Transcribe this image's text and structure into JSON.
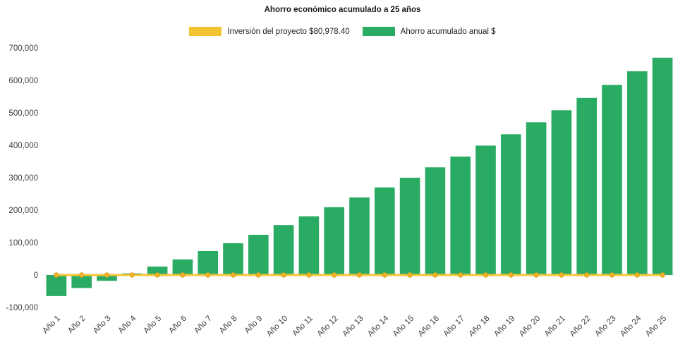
{
  "title": "Ahorro económico acumulado a 25 años",
  "legend": [
    {
      "label": "Inversión del proyecto $80,978.40",
      "color": "#f0c330"
    },
    {
      "label": "Ahorro acumulado anual $",
      "color": "#2aab63"
    }
  ],
  "chart_data": {
    "type": "bar",
    "title": "Ahorro económico acumulado a 25 años",
    "xlabel": "",
    "ylabel": "",
    "grid": false,
    "legend_position": "top",
    "ylim": [
      -100000,
      700000
    ],
    "yticks": [
      {
        "value": 700000,
        "label": "700,000"
      },
      {
        "value": 600000,
        "label": "600,000"
      },
      {
        "value": 500000,
        "label": "500,000"
      },
      {
        "value": 400000,
        "label": "400,000"
      },
      {
        "value": 300000,
        "label": "300,000"
      },
      {
        "value": 200000,
        "label": "200,000"
      },
      {
        "value": 100000,
        "label": "100,000"
      },
      {
        "value": 0,
        "label": "0"
      },
      {
        "value": -100000,
        "label": "-100,000"
      }
    ],
    "categories": [
      "Año 1",
      "Año 2",
      "Año 3",
      "Año 4",
      "Año 5",
      "Año 6",
      "Año 7",
      "Año 8",
      "Año 9",
      "Año 10",
      "Año 11",
      "Año 12",
      "Año 13",
      "Año 14",
      "Año 15",
      "Año 16",
      "Año 17",
      "Año 18",
      "Año 19",
      "Año 20",
      "Año 21",
      "Año 22",
      "Año 23",
      "Año 24",
      "Año 25"
    ],
    "series": [
      {
        "name": "Ahorro acumulado anual $",
        "type": "bar",
        "color": "#2aab63",
        "values": [
          -65000,
          -40000,
          -18000,
          5000,
          26000,
          48000,
          74000,
          98000,
          124000,
          154000,
          181000,
          209000,
          239000,
          270000,
          300000,
          332000,
          365000,
          399000,
          434000,
          471000,
          508000,
          546000,
          586000,
          628000,
          670000
        ]
      },
      {
        "name": "Inversión del proyecto $80,978.40",
        "type": "line",
        "color": "#f6c436",
        "marker_fill": "#f2b32c",
        "marker_stroke": "#dca21d",
        "values": [
          0,
          0,
          0,
          0,
          0,
          0,
          0,
          0,
          0,
          0,
          0,
          0,
          0,
          0,
          0,
          0,
          0,
          0,
          0,
          0,
          0,
          0,
          0,
          0,
          0
        ]
      }
    ]
  }
}
